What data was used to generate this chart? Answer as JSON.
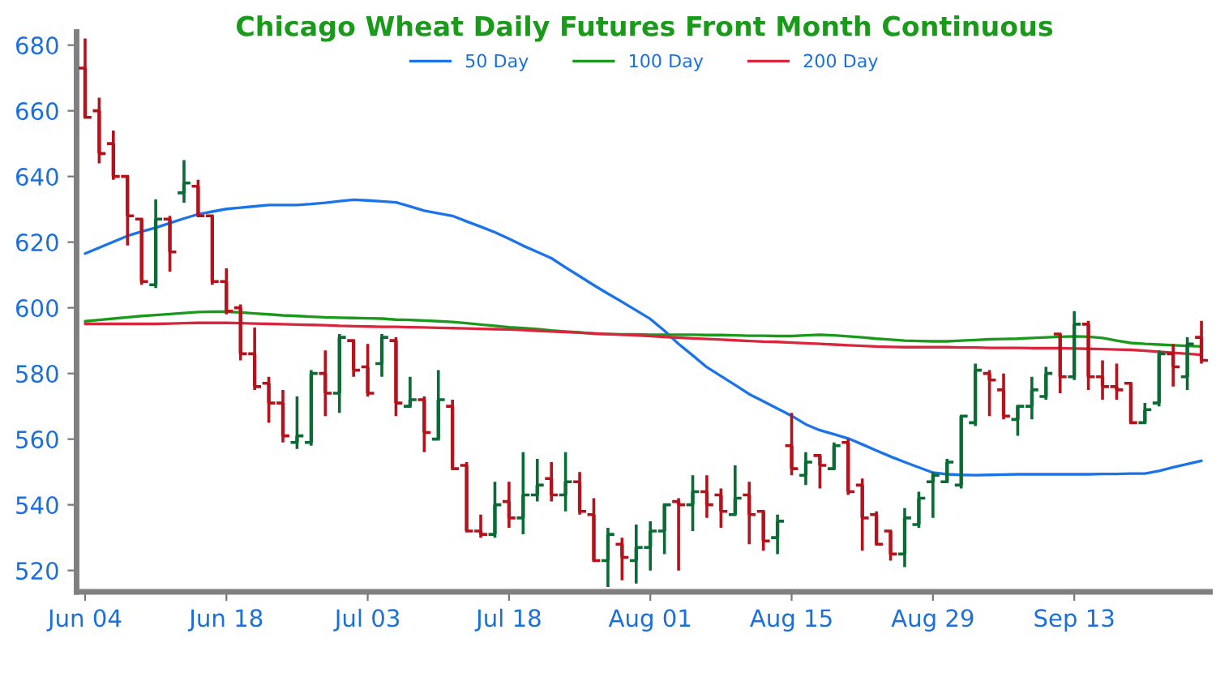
{
  "chart_data": {
    "type": "candlestick",
    "title": "Chicago Wheat Daily Futures Front Month Continuous",
    "categories": [
      "Jun 04",
      null,
      null,
      null,
      null,
      null,
      null,
      null,
      null,
      null,
      "Jun 18",
      null,
      null,
      null,
      null,
      null,
      null,
      null,
      null,
      null,
      "Jul 03",
      null,
      null,
      null,
      null,
      null,
      null,
      null,
      null,
      null,
      "Jul 18",
      null,
      null,
      null,
      null,
      null,
      null,
      null,
      null,
      null,
      "Aug 01",
      null,
      null,
      null,
      null,
      null,
      null,
      null,
      null,
      null,
      "Aug 15",
      null,
      null,
      null,
      null,
      null,
      null,
      null,
      null,
      null,
      "Aug 29",
      null,
      null,
      null,
      null,
      null,
      null,
      null,
      null,
      null,
      "Sep 13",
      null,
      null,
      null,
      null,
      null,
      null,
      null,
      null,
      null
    ],
    "ohlc": [
      [
        673,
        682,
        658,
        658
      ],
      [
        660,
        664,
        644,
        647
      ],
      [
        650,
        654,
        639,
        640
      ],
      [
        640,
        640,
        619,
        628
      ],
      [
        627,
        627,
        607,
        608
      ],
      [
        607,
        633,
        606,
        627
      ],
      [
        627,
        628,
        611,
        617
      ],
      [
        635,
        645,
        632,
        638
      ],
      [
        637,
        639,
        628,
        628
      ],
      [
        628,
        628,
        607,
        608
      ],
      [
        608,
        612,
        598,
        599
      ],
      [
        600,
        601,
        584,
        586
      ],
      [
        586,
        594,
        575,
        576
      ],
      [
        577,
        579,
        565,
        571
      ],
      [
        571,
        575,
        559,
        561
      ],
      [
        559,
        573,
        557,
        561
      ],
      [
        559,
        581,
        558,
        580
      ],
      [
        580,
        587,
        567,
        574
      ],
      [
        574,
        592,
        568,
        591
      ],
      [
        590,
        590,
        579,
        581
      ],
      [
        582,
        589,
        573,
        574
      ],
      [
        583,
        592,
        579,
        591
      ],
      [
        590,
        591,
        567,
        571
      ],
      [
        570,
        579,
        570,
        572
      ],
      [
        572,
        573,
        556,
        562
      ],
      [
        560,
        581,
        560,
        572
      ],
      [
        570,
        572,
        551,
        551
      ],
      [
        552,
        553,
        532,
        532
      ],
      [
        532,
        537,
        530,
        531
      ],
      [
        531,
        547,
        530,
        540
      ],
      [
        541,
        547,
        533,
        536
      ],
      [
        536,
        556,
        531,
        543
      ],
      [
        543,
        554,
        541,
        546
      ],
      [
        548,
        553,
        541,
        543
      ],
      [
        543,
        556,
        538,
        547
      ],
      [
        547,
        550,
        537,
        538
      ],
      [
        537,
        542,
        523,
        523
      ],
      [
        523,
        533,
        515,
        531
      ],
      [
        528,
        530,
        517,
        524
      ],
      [
        523,
        534,
        516,
        527
      ],
      [
        527,
        535,
        520,
        532
      ],
      [
        532,
        540,
        525,
        540
      ],
      [
        541,
        542,
        520,
        540
      ],
      [
        540,
        549,
        532,
        544
      ],
      [
        544,
        549,
        536,
        540
      ],
      [
        543,
        545,
        533,
        538
      ],
      [
        537,
        552,
        537,
        542
      ],
      [
        543,
        547,
        528,
        537
      ],
      [
        538,
        538,
        526,
        529
      ],
      [
        530,
        537,
        525,
        535
      ],
      [
        558,
        568,
        549,
        551
      ],
      [
        549,
        556,
        546,
        553
      ],
      [
        555,
        555,
        545,
        552
      ],
      [
        551,
        559,
        551,
        558
      ],
      [
        559,
        560,
        543,
        544
      ],
      [
        546,
        548,
        526,
        536
      ],
      [
        537,
        538,
        528,
        528
      ],
      [
        532,
        532,
        523,
        525
      ],
      [
        525,
        539,
        521,
        536
      ],
      [
        534,
        544,
        533,
        542
      ],
      [
        547,
        550,
        536,
        549
      ],
      [
        547,
        554,
        547,
        553
      ],
      [
        546,
        567,
        545,
        567
      ],
      [
        565,
        583,
        564,
        581
      ],
      [
        580,
        581,
        567,
        578
      ],
      [
        575,
        580,
        566,
        567
      ],
      [
        566,
        570,
        561,
        570
      ],
      [
        570,
        579,
        566,
        575
      ],
      [
        573,
        582,
        572,
        580
      ],
      [
        592,
        592,
        574,
        579
      ],
      [
        579,
        599,
        578,
        595
      ],
      [
        595,
        596,
        575,
        579
      ],
      [
        579,
        584,
        572,
        576
      ],
      [
        576,
        583,
        572,
        575
      ],
      [
        577,
        577,
        565,
        565
      ],
      [
        565,
        571,
        565,
        569
      ],
      [
        571,
        587,
        570,
        586
      ],
      [
        586,
        589,
        576,
        582
      ],
      [
        579,
        591,
        575,
        589
      ],
      [
        591,
        596,
        583,
        584
      ]
    ],
    "colors": [
      "#b5121b",
      "#b5121b",
      "#b5121b",
      "#b5121b",
      "#b5121b",
      "#0b6b35",
      "#b5121b",
      "#0b6b35",
      "#b5121b",
      "#b5121b",
      "#b5121b",
      "#b5121b",
      "#b5121b",
      "#b5121b",
      "#b5121b",
      "#0b6b35",
      "#0b6b35",
      "#b5121b",
      "#0b6b35",
      "#b5121b",
      "#b5121b",
      "#0b6b35",
      "#b5121b",
      "#0b6b35",
      "#b5121b",
      "#0b6b35",
      "#b5121b",
      "#b5121b",
      "#b5121b",
      "#0b6b35",
      "#b5121b",
      "#0b6b35",
      "#0b6b35",
      "#b5121b",
      "#0b6b35",
      "#b5121b",
      "#b5121b",
      "#0b6b35",
      "#b5121b",
      "#0b6b35",
      "#0b6b35",
      "#0b6b35",
      "#b5121b",
      "#0b6b35",
      "#b5121b",
      "#b5121b",
      "#0b6b35",
      "#b5121b",
      "#b5121b",
      "#0b6b35",
      "#b5121b",
      "#0b6b35",
      "#b5121b",
      "#0b6b35",
      "#b5121b",
      "#b5121b",
      "#b5121b",
      "#b5121b",
      "#0b6b35",
      "#0b6b35",
      "#0b6b35",
      "#0b6b35",
      "#0b6b35",
      "#0b6b35",
      "#b5121b",
      "#b5121b",
      "#0b6b35",
      "#0b6b35",
      "#0b6b35",
      "#b5121b",
      "#0b6b35",
      "#b5121b",
      "#b5121b",
      "#b5121b",
      "#b5121b",
      "#0b6b35",
      "#0b6b35",
      "#b5121b",
      "#0b6b35",
      "#b5121b"
    ],
    "series": [
      {
        "name": "50 Day",
        "type": "line",
        "color": "#1a73e8",
        "values": [
          616.5,
          618.3,
          620.1,
          621.9,
          623.2,
          624.4,
          625.8,
          627.2,
          628.5,
          629.3,
          630.1,
          630.5,
          630.9,
          631.3,
          631.3,
          631.3,
          631.6,
          632.0,
          632.5,
          632.9,
          632.7,
          632.4,
          632.1,
          630.9,
          629.6,
          628.8,
          628.0,
          626.3,
          624.7,
          623.0,
          621.0,
          618.9,
          617.0,
          615.1,
          612.3,
          609.6,
          606.9,
          604.3,
          601.8,
          599.2,
          596.6,
          593.0,
          589.0,
          585.5,
          581.9,
          579.2,
          576.5,
          573.7,
          571.5,
          569.3,
          567.1,
          564.5,
          562.7,
          561.5,
          560.2,
          558.4,
          556.5,
          554.7,
          553.0,
          551.4,
          549.8,
          549.3,
          549.1,
          549.0,
          549.1,
          549.2,
          549.3,
          549.3,
          549.3,
          549.3,
          549.3,
          549.3,
          549.4,
          549.4,
          549.5,
          549.5,
          550.3,
          551.4,
          552.4,
          553.4
        ]
      },
      {
        "name": "100 Day",
        "type": "line",
        "color": "#1a9a1a",
        "values": [
          595.9,
          596.3,
          596.7,
          597.1,
          597.5,
          597.8,
          598.1,
          598.4,
          598.7,
          598.8,
          598.8,
          598.6,
          598.3,
          598.0,
          597.7,
          597.5,
          597.3,
          597.1,
          597.0,
          596.9,
          596.8,
          596.7,
          596.4,
          596.3,
          596.1,
          595.9,
          595.7,
          595.3,
          594.9,
          594.5,
          594.1,
          593.8,
          593.5,
          593.1,
          592.8,
          592.5,
          592.1,
          592.0,
          591.9,
          591.9,
          591.8,
          591.8,
          591.8,
          591.8,
          591.7,
          591.7,
          591.6,
          591.5,
          591.5,
          591.4,
          591.4,
          591.6,
          591.8,
          591.6,
          591.3,
          591.0,
          590.6,
          590.3,
          590.0,
          589.9,
          589.8,
          589.8,
          590.0,
          590.2,
          590.4,
          590.5,
          590.6,
          590.8,
          591.0,
          591.2,
          591.3,
          591.2,
          590.8,
          590.0,
          589.3,
          589.0,
          588.8,
          588.6,
          588.4,
          588.2
        ]
      },
      {
        "name": "200 Day",
        "type": "line",
        "color": "#d7263d",
        "values": [
          595.1,
          595.1,
          595.1,
          595.1,
          595.1,
          595.1,
          595.2,
          595.3,
          595.4,
          595.4,
          595.4,
          595.3,
          595.2,
          595.1,
          595.0,
          594.9,
          594.8,
          594.7,
          594.5,
          594.4,
          594.3,
          594.2,
          594.2,
          594.1,
          594.0,
          593.9,
          593.8,
          593.7,
          593.6,
          593.5,
          593.4,
          593.2,
          593.0,
          592.8,
          592.6,
          592.4,
          592.2,
          592.0,
          591.8,
          591.6,
          591.4,
          591.1,
          590.9,
          590.7,
          590.5,
          590.3,
          590.1,
          589.9,
          589.7,
          589.6,
          589.4,
          589.2,
          589.0,
          588.8,
          588.6,
          588.4,
          588.2,
          588.1,
          588.0,
          588.0,
          588.0,
          588.0,
          587.9,
          587.9,
          587.8,
          587.8,
          587.8,
          587.7,
          587.7,
          587.7,
          587.6,
          587.5,
          587.4,
          587.3,
          587.2,
          586.9,
          586.6,
          586.3,
          586.0,
          585.7
        ]
      }
    ],
    "ylim": [
      513.5,
      684
    ],
    "yticks": [
      520,
      540,
      560,
      580,
      600,
      620,
      640,
      660,
      680
    ],
    "legend": "top",
    "grid": false
  }
}
